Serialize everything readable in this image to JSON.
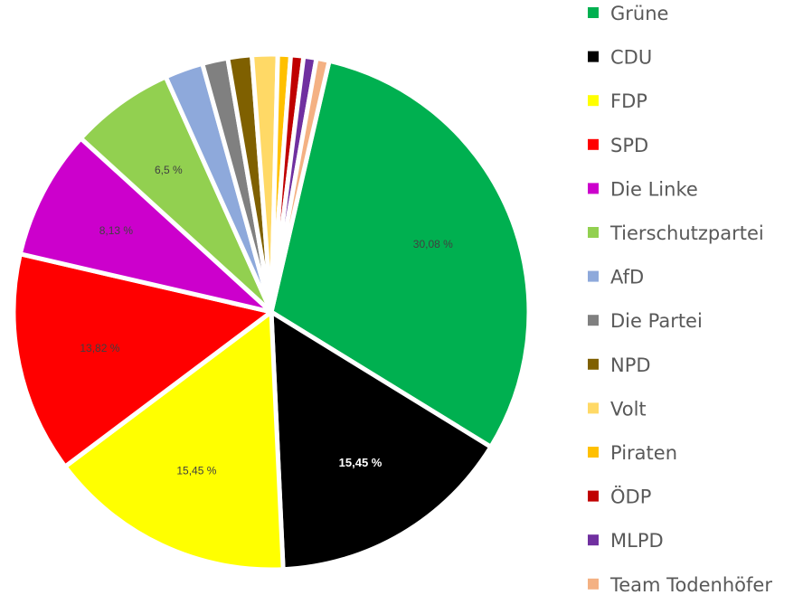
{
  "chart_data": {
    "type": "pie",
    "categories": [
      "Grüne",
      "CDU",
      "FDP",
      "SPD",
      "Die Linke",
      "Tierschutzpartei",
      "AfD",
      "Die Partei",
      "NPD",
      "Volt",
      "Piraten",
      "ÖDP",
      "MLPD",
      "Team Todenhöfer"
    ],
    "values": [
      30.08,
      15.45,
      15.45,
      13.82,
      8.13,
      6.5,
      2.4,
      1.6,
      1.5,
      1.6,
      0.8,
      0.8,
      0.8,
      0.8
    ],
    "colors": [
      "#00B050",
      "#000000",
      "#FFFF00",
      "#FF0000",
      "#CC00CC",
      "#92D050",
      "#8EA9DB",
      "#808080",
      "#7F6000",
      "#FFD966",
      "#FFC000",
      "#C00000",
      "#7030A0",
      "#F4B183"
    ],
    "data_labels": [
      "30,08 %",
      "15,45 %",
      "15,45 %",
      "13,82 %",
      "8,13 %",
      "6,5 %",
      "",
      "",
      "",
      "",
      "",
      "",
      "",
      ""
    ],
    "label_colors": [
      "#404040",
      "#ffffff",
      "#404040",
      "#404040",
      "#404040",
      "#404040",
      "",
      "",
      "",
      "",
      "",
      "",
      "",
      ""
    ],
    "bold_labels": [
      false,
      true,
      false,
      false,
      false,
      false,
      false,
      false,
      false,
      false,
      false,
      false,
      false,
      false
    ],
    "legend_position": "right",
    "title": ""
  }
}
